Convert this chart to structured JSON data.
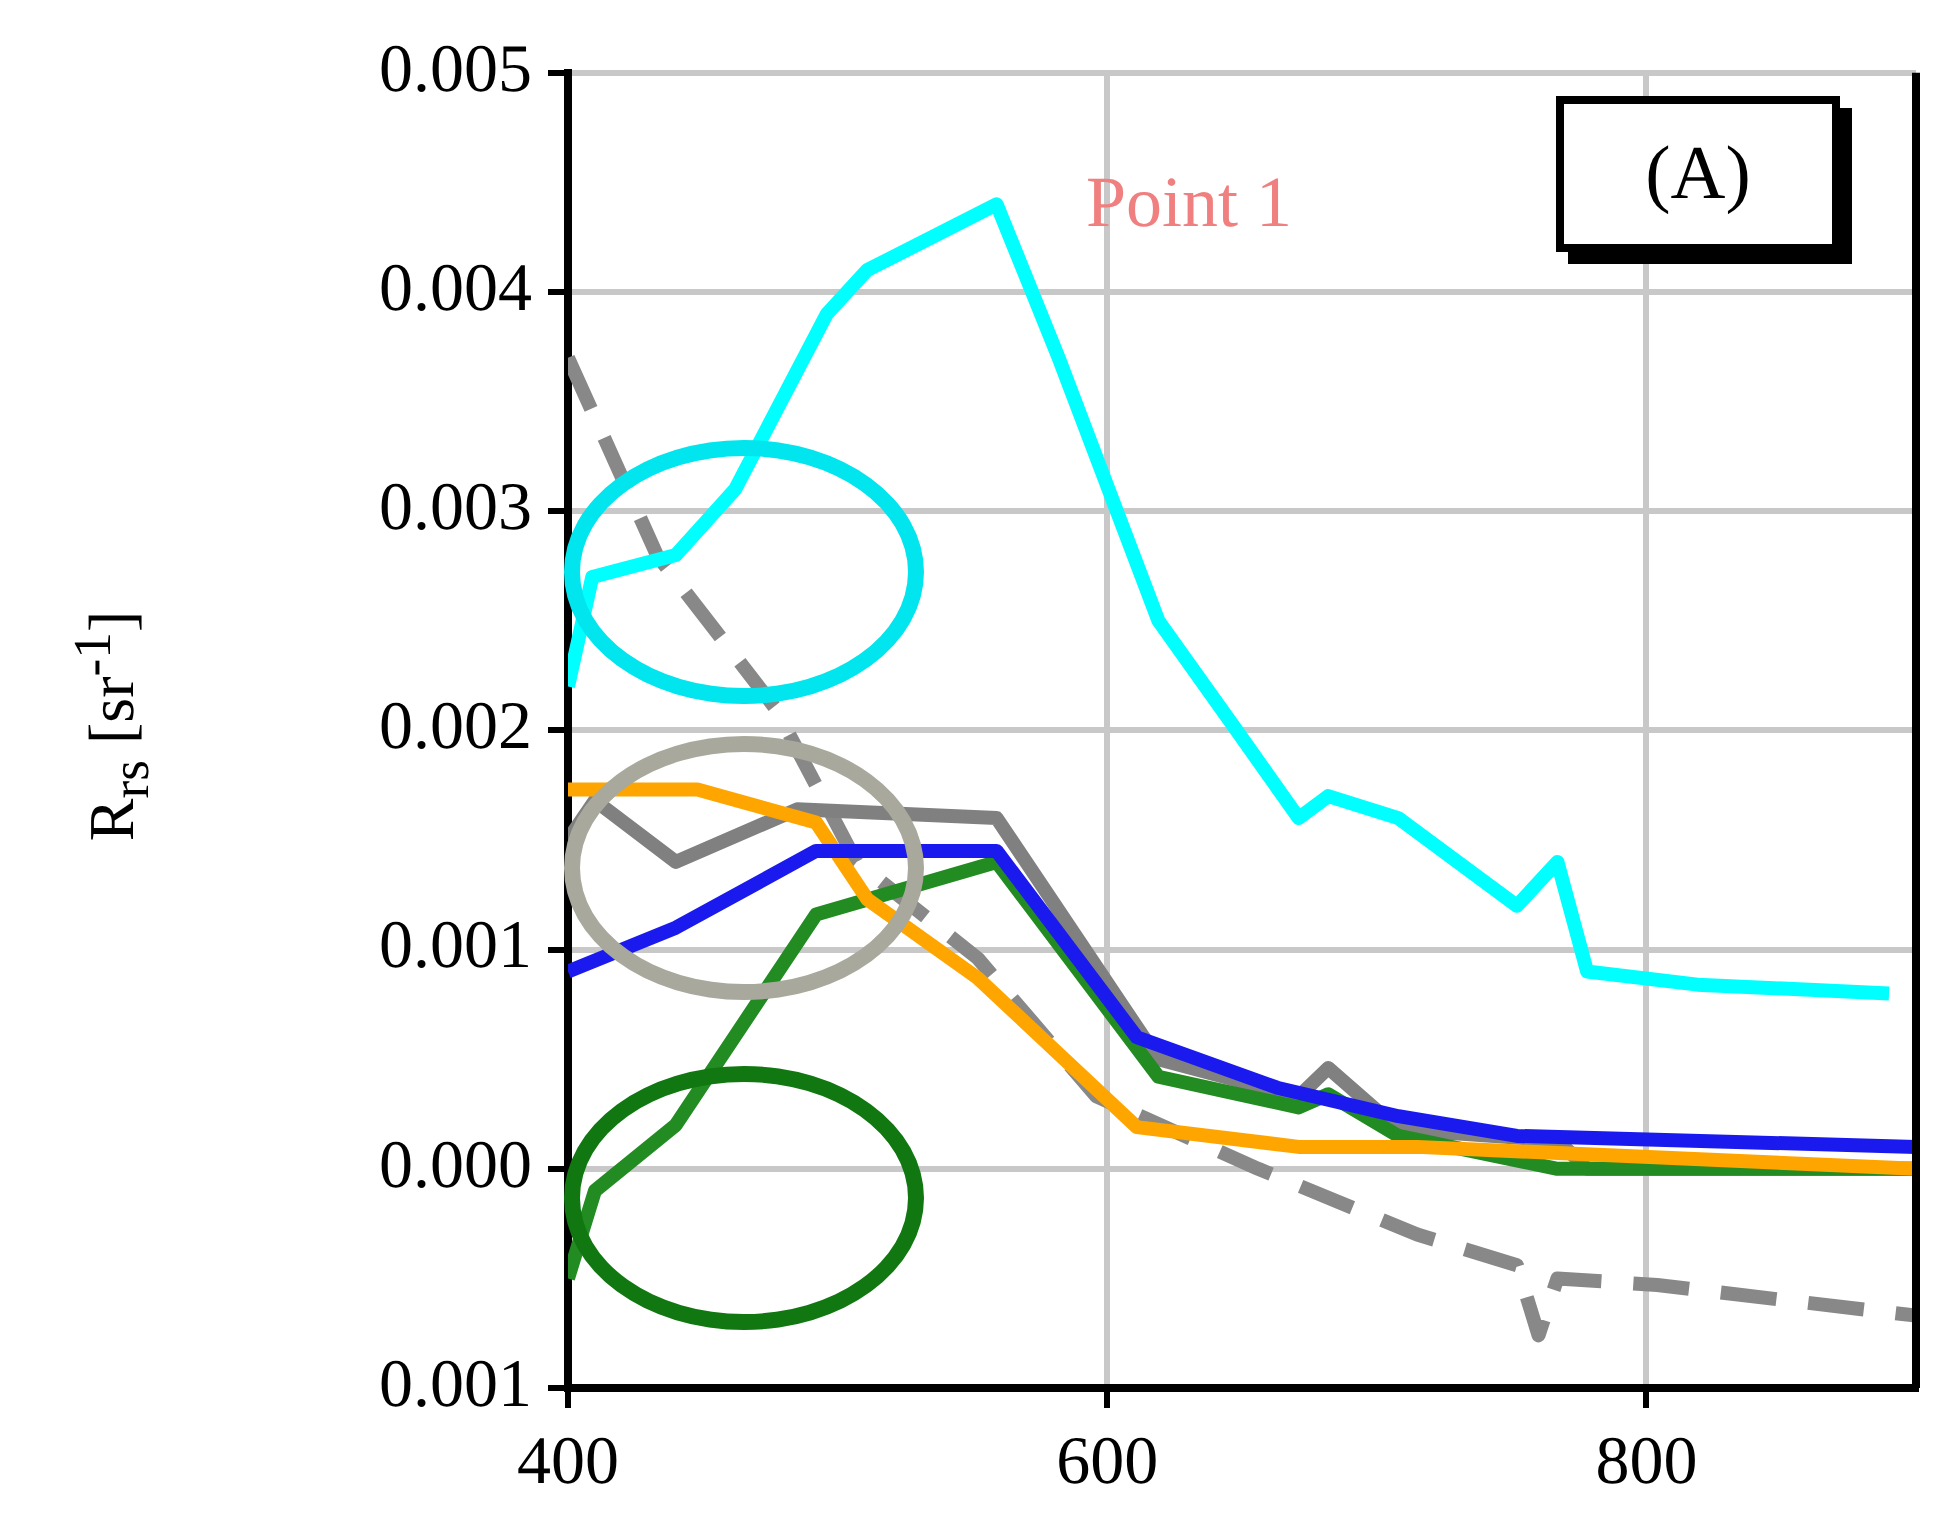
{
  "chart_data": {
    "type": "line",
    "ylabel": "R$_{rs}$ [sr$^{-1}$]",
    "annotations": [
      "Point 1",
      "(A)"
    ],
    "xlim": [
      400,
      900
    ],
    "xticks": [
      400,
      600,
      800
    ],
    "ylim": [
      -0.001,
      0.005
    ],
    "yticks": [
      {
        "value": -0.001,
        "label": "0.001"
      },
      {
        "value": 0,
        "label": "0.000"
      },
      0.001,
      0.002,
      0.003,
      0.004,
      0.005
    ],
    "grid": true,
    "marker": "none",
    "series": [
      {
        "color": "#00ffff",
        "x": [
          400,
          409,
          440,
          462,
          496,
          511,
          559,
          582,
          619,
          648,
          671,
          682,
          708,
          752,
          767,
          778,
          819,
          890
        ],
        "values": [
          0.0022,
          0.0027,
          0.0028,
          0.0031,
          0.0039,
          0.0041,
          0.0044,
          0.0037,
          0.0025,
          0.002,
          0.0016,
          0.0017,
          0.0016,
          0.0012,
          0.0014,
          0.0009,
          0.00084,
          0.0008
        ]
      },
      {
        "color": "#1a1aee",
        "x": [
          400,
          440,
          492,
          559,
          611,
          663,
          708,
          752,
          900
        ],
        "values": [
          0.0009,
          0.0011,
          0.00145,
          0.00145,
          0.0006,
          0.00037,
          0.00024,
          0.00015,
          0.0001
        ]
      },
      {
        "color": "#ffa500",
        "x": [
          400,
          448,
          492,
          511,
          552,
          611,
          671,
          715,
          900
        ],
        "values": [
          0.00173,
          0.00173,
          0.00158,
          0.00123,
          0.00087,
          0.00019,
          0.0001,
          0.0001,
          0
        ]
      },
      {
        "color": "#228b22",
        "x": [
          400,
          410,
          440,
          492,
          559,
          619,
          671,
          682,
          708,
          767,
          900
        ],
        "values": [
          -0.0005,
          -0.0001,
          0.0002,
          0.00116,
          0.0014,
          0.00042,
          0.00028,
          0.00034,
          0.00015,
          0,
          0
        ]
      },
      {
        "color": "#808080",
        "x": [
          400,
          410,
          440,
          485,
          559,
          619,
          671,
          682,
          708,
          767,
          778,
          900
        ],
        "values": [
          0.0015,
          0.00168,
          0.0014,
          0.00164,
          0.0016,
          0.0005,
          0.00033,
          0.00046,
          0.00018,
          0.00013,
          0,
          0
        ]
      },
      {
        "color": "#888888",
        "line_style": "dashed",
        "x": [
          400,
          433,
          477,
          507,
          552,
          596,
          656,
          715,
          752,
          760,
          767,
          804,
          900
        ],
        "values": [
          0.0037,
          0.0028,
          0.0021,
          0.0014,
          0.00096,
          0.00033,
          0,
          -0.0003,
          -0.00044,
          -0.00076,
          -0.0005,
          -0.00053,
          -0.00067
        ]
      }
    ]
  }
}
